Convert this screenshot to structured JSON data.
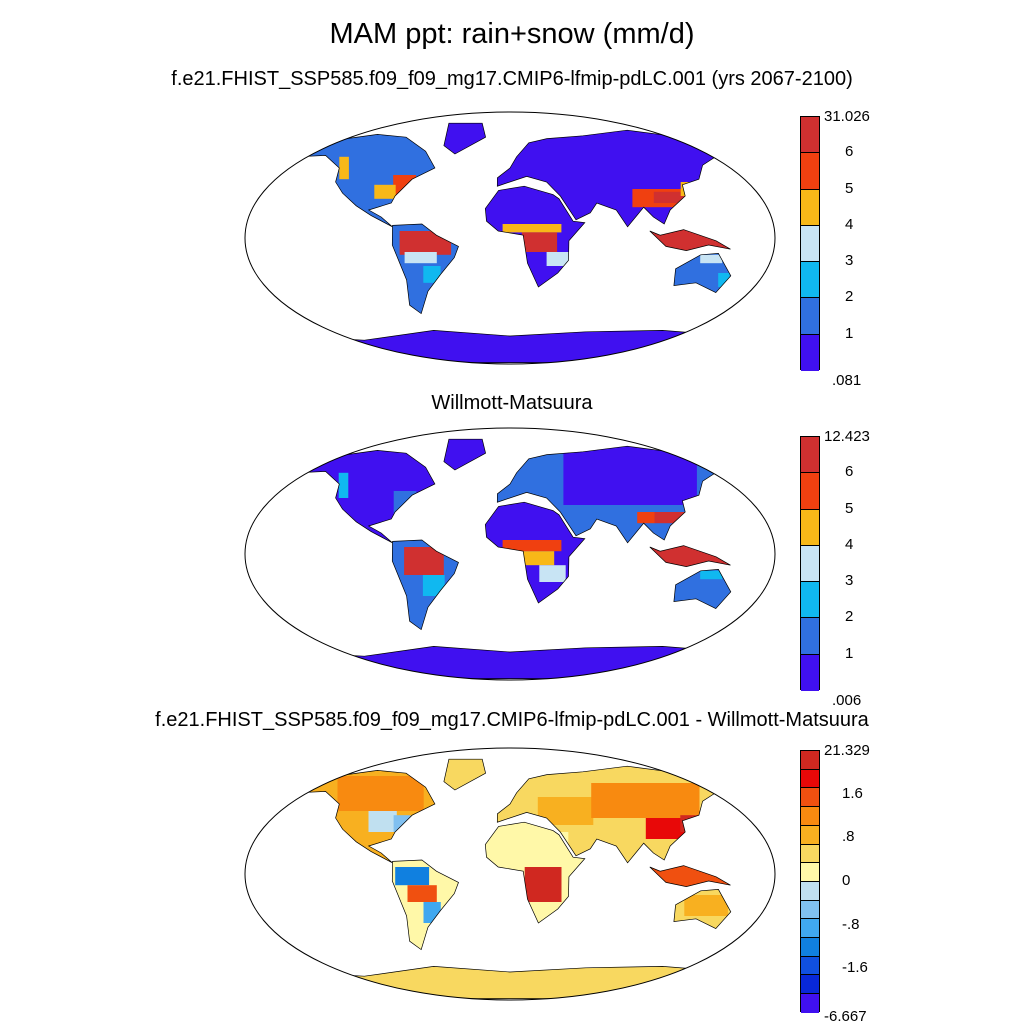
{
  "chart_data": [
    {
      "type": "heatmap",
      "figure_title": "MAM ppt: rain+snow (mm/d)",
      "title": "f.e21.FHIST_SSP585.f09_f09_mg17.CMIP6-lfmip-pdLC.001 (yrs 2067-2100)",
      "colorbar": {
        "labels": [
          "31.026",
          "6",
          "5",
          "4",
          "3",
          "2",
          "1",
          ".081"
        ],
        "colors": [
          "#d03030",
          "#f04010",
          "#f8b818",
          "#c8e4f4",
          "#10b8f0",
          "#3070e0",
          "#4010f0"
        ]
      },
      "colorbar_range": [
        0.081,
        31.026
      ]
    },
    {
      "type": "heatmap",
      "title": "Willmott-Matsuura",
      "colorbar": {
        "labels": [
          "12.423",
          "6",
          "5",
          "4",
          "3",
          "2",
          "1",
          ".006"
        ],
        "colors": [
          "#d03030",
          "#f04010",
          "#f8b818",
          "#c8e4f4",
          "#10b8f0",
          "#3070e0",
          "#4010f0"
        ]
      },
      "colorbar_range": [
        0.006,
        12.423
      ]
    },
    {
      "type": "heatmap",
      "title": "f.e21.FHIST_SSP585.f09_f09_mg17.CMIP6-lfmip-pdLC.001 - Willmott-Matsuura",
      "colorbar": {
        "labels": [
          "21.329",
          "1.6",
          ".8",
          "0",
          "-.8",
          "-1.6",
          "-6.667"
        ],
        "colors": [
          "#d02820",
          "#e80808",
          "#f05010",
          "#f88a10",
          "#f8b020",
          "#f8d860",
          "#fff8a8",
          "#c0e0f0",
          "#80c0f0",
          "#40a8f0",
          "#1080e0",
          "#1050e0",
          "#0828d8",
          "#4010f0"
        ]
      },
      "colorbar_range": [
        -6.667,
        21.329
      ]
    }
  ]
}
